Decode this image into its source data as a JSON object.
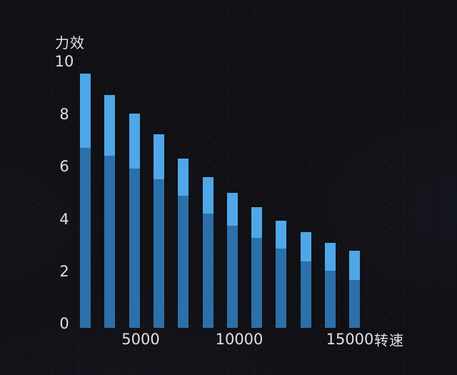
{
  "page": {
    "background_color": "#101015",
    "text_color": "#dde0e5"
  },
  "chart_data": {
    "type": "bar",
    "stacked": true,
    "title": "力效",
    "ylabel": "力效",
    "xlabel": "转速",
    "ylim": [
      0,
      10
    ],
    "grid": false,
    "legend": null,
    "y_tick_labels": [
      "10",
      "8",
      "6",
      "4",
      "2",
      "0"
    ],
    "x_tick_labels": [
      "5000",
      "10000",
      "15000"
    ],
    "bar_count": 12,
    "series": [
      {
        "name": "bottom-segment-dark-blue",
        "color": "#2c70aa",
        "values": [
          6.8,
          6.5,
          6.0,
          5.6,
          5.0,
          4.3,
          3.85,
          3.4,
          3.0,
          2.5,
          2.15,
          1.8
        ]
      },
      {
        "name": "top-segment-light-blue",
        "color": "#4fa7e8",
        "values": [
          2.8,
          2.3,
          2.1,
          1.7,
          1.4,
          1.4,
          1.25,
          1.15,
          1.05,
          1.1,
          1.05,
          1.1
        ]
      }
    ],
    "totals": [
      9.6,
      8.8,
      8.1,
      7.3,
      6.4,
      5.7,
      5.1,
      4.55,
      4.05,
      3.6,
      3.2,
      2.9
    ]
  }
}
